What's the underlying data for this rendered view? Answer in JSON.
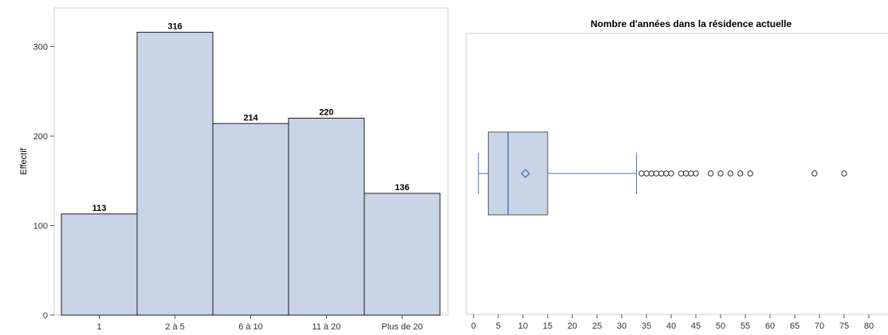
{
  "chart_data": [
    {
      "type": "bar",
      "title": "",
      "xlabel": "",
      "ylabel": "Effectif",
      "categories": [
        "1",
        "2 à 5",
        "6 à 10",
        "11 à 20",
        "Plus de 20"
      ],
      "values": [
        113,
        316,
        214,
        220,
        136
      ],
      "ylim": [
        0,
        335
      ],
      "yticks": [
        0,
        100,
        200,
        300
      ],
      "data_labels": true,
      "grid": false,
      "colors": {
        "bar_fill": "#c9d5e6",
        "bar_stroke": "#1a1a1a",
        "frame": "#cccccc"
      }
    },
    {
      "type": "boxplot",
      "title": "Nombre d'années dans la résidence actuelle",
      "xlabel": "",
      "ylabel": "",
      "orientation": "horizontal",
      "xlim": [
        0,
        80
      ],
      "xticks": [
        0,
        5,
        10,
        15,
        20,
        25,
        30,
        35,
        40,
        45,
        50,
        55,
        60,
        65,
        70,
        75,
        80
      ],
      "stats": {
        "whisker_low": 1,
        "q1": 3,
        "median": 7,
        "mean": 10.5,
        "q3": 15,
        "whisker_high": 33
      },
      "outliers": [
        34,
        35,
        36,
        37,
        38,
        39,
        40,
        42,
        43,
        44,
        45,
        48,
        50,
        52,
        54,
        56,
        69,
        75
      ],
      "grid": false,
      "colors": {
        "box_fill": "#c9d5e6",
        "box_stroke": "#555555",
        "whisker": "#4472c4",
        "median": "#4472c4",
        "mean_marker": "#4472c4",
        "outlier": "#333333",
        "frame": "#cccccc"
      }
    }
  ]
}
